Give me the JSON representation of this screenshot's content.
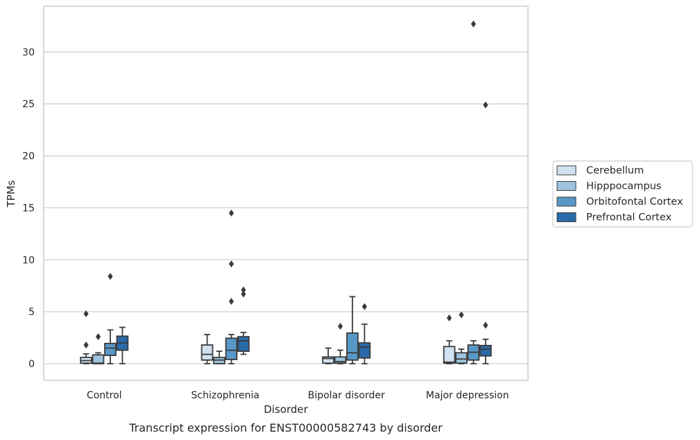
{
  "chart_data": {
    "type": "boxplot",
    "title": "",
    "caption": "Transcript expression for ENST00000582743 by disorder",
    "xlabel": "Disorder",
    "ylabel": "TPMs",
    "ylim": [
      -1.6,
      34.4
    ],
    "yticks": [
      0,
      5,
      10,
      15,
      20,
      25,
      30
    ],
    "grid": "horizontal",
    "legend_position": "right",
    "categories": [
      "Control",
      "Schizophrenia",
      "Bipolar disorder",
      "Major depression"
    ],
    "series": [
      {
        "name": "Cerebellum",
        "color": "#d1e1f0",
        "boxes": [
          {
            "whislo": 0,
            "q1": 0.05,
            "med": 0.3,
            "q3": 0.6,
            "whishi": 0.95,
            "fliers": [
              4.8,
              1.8
            ]
          },
          {
            "whislo": 0,
            "q1": 0.35,
            "med": 0.9,
            "q3": 1.8,
            "whishi": 2.8,
            "fliers": []
          },
          {
            "whislo": 0,
            "q1": 0.05,
            "med": 0.5,
            "q3": 0.65,
            "whishi": 1.5,
            "fliers": []
          },
          {
            "whislo": 0,
            "q1": 0.05,
            "med": 0.15,
            "q3": 1.65,
            "whishi": 2.2,
            "fliers": [
              4.4
            ]
          }
        ]
      },
      {
        "name": "Hipppocampus",
        "color": "#9cc4df",
        "boxes": [
          {
            "whislo": 0,
            "q1": 0.0,
            "med": 0.05,
            "q3": 0.85,
            "whishi": 1.05,
            "fliers": [
              2.6
            ]
          },
          {
            "whislo": 0,
            "q1": 0.0,
            "med": 0.35,
            "q3": 0.6,
            "whishi": 1.2,
            "fliers": []
          },
          {
            "whislo": 0,
            "q1": 0.05,
            "med": 0.2,
            "q3": 0.65,
            "whishi": 1.3,
            "fliers": [
              3.6
            ]
          },
          {
            "whislo": 0,
            "q1": 0.05,
            "med": 0.45,
            "q3": 1.05,
            "whishi": 1.4,
            "fliers": [
              4.7
            ]
          }
        ]
      },
      {
        "name": "Orbitofontal Cortex",
        "color": "#5798c6",
        "boxes": [
          {
            "whislo": 0,
            "q1": 0.8,
            "med": 1.5,
            "q3": 1.95,
            "whishi": 3.25,
            "fliers": [
              8.4
            ]
          },
          {
            "whislo": 0,
            "q1": 0.4,
            "med": 1.3,
            "q3": 2.45,
            "whishi": 2.8,
            "fliers": [
              14.5,
              9.6,
              6.0
            ]
          },
          {
            "whislo": 0,
            "q1": 0.35,
            "med": 1.05,
            "q3": 2.95,
            "whishi": 6.45,
            "fliers": []
          },
          {
            "whislo": 0,
            "q1": 0.35,
            "med": 1.1,
            "q3": 1.8,
            "whishi": 2.2,
            "fliers": [
              32.7
            ]
          }
        ]
      },
      {
        "name": "Prefrontal Cortex",
        "color": "#2b6aa8",
        "boxes": [
          {
            "whislo": 0,
            "q1": 1.3,
            "med": 2.0,
            "q3": 2.65,
            "whishi": 3.5,
            "fliers": []
          },
          {
            "whislo": 0.9,
            "q1": 1.2,
            "med": 2.2,
            "q3": 2.6,
            "whishi": 3.0,
            "fliers": [
              7.1,
              6.7
            ]
          },
          {
            "whislo": 0,
            "q1": 0.55,
            "med": 1.6,
            "q3": 2.0,
            "whishi": 3.8,
            "fliers": [
              5.5
            ]
          },
          {
            "whislo": 0,
            "q1": 0.75,
            "med": 1.4,
            "q3": 1.75,
            "whishi": 2.35,
            "fliers": [
              24.9,
              3.7
            ]
          }
        ]
      }
    ]
  }
}
